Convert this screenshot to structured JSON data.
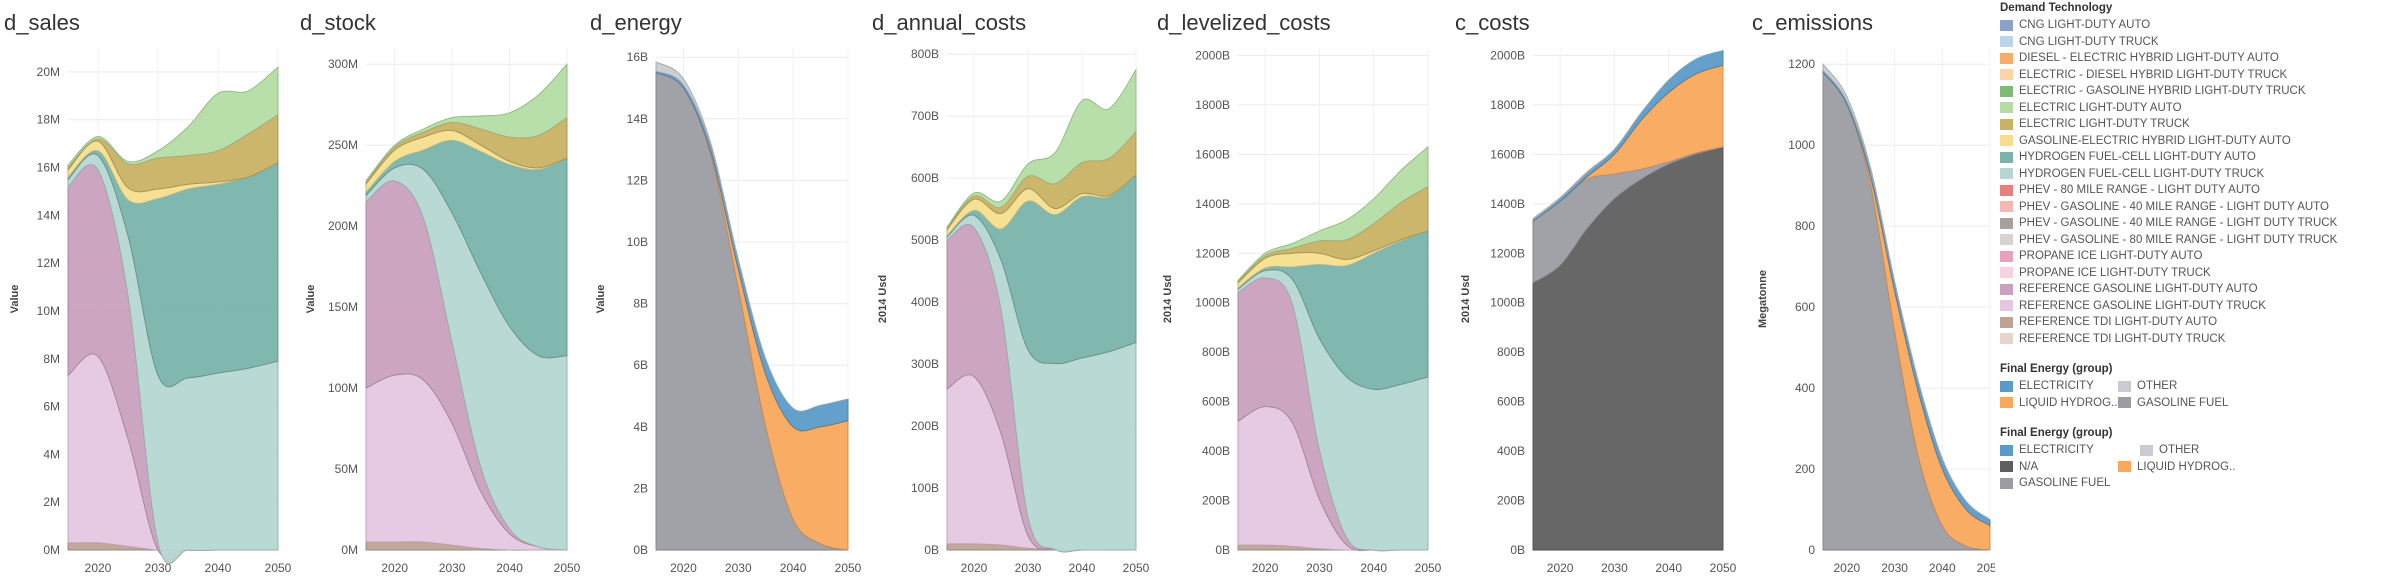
{
  "x_ticks": [
    "2020",
    "2030",
    "2040",
    "2050"
  ],
  "legend_main": {
    "title": "Demand Technology",
    "items": [
      {
        "label": "CNG LIGHT-DUTY AUTO",
        "color": "#8aa1c8"
      },
      {
        "label": "CNG LIGHT-DUTY TRUCK",
        "color": "#bcd3ec"
      },
      {
        "label": "DIESEL - ELECTRIC HYBRID LIGHT-DUTY AUTO",
        "color": "#f6ad6a"
      },
      {
        "label": "ELECTRIC - DIESEL HYBRID LIGHT-DUTY TRUCK",
        "color": "#fbd4a9"
      },
      {
        "label": "ELECTRIC - GASOLINE HYBRID LIGHT-DUTY TRUCK",
        "color": "#7fbb74"
      },
      {
        "label": "ELECTRIC LIGHT-DUTY AUTO",
        "color": "#b4dca4"
      },
      {
        "label": "ELECTRIC LIGHT-DUTY TRUCK",
        "color": "#c9b264"
      },
      {
        "label": "GASOLINE-ELECTRIC HYBRID LIGHT-DUTY AUTO",
        "color": "#f6de8e"
      },
      {
        "label": "HYDROGEN FUEL-CELL LIGHT-DUTY AUTO",
        "color": "#79b3ab"
      },
      {
        "label": "HYDROGEN FUEL-CELL LIGHT-DUTY TRUCK",
        "color": "#b5d7d3"
      },
      {
        "label": "PHEV - 80 MILE RANGE - LIGHT DUTY AUTO",
        "color": "#e77f7f"
      },
      {
        "label": "PHEV - GASOLINE - 40 MILE RANGE - LIGHT DUTY AUTO",
        "color": "#f2b8b4"
      },
      {
        "label": "PHEV - GASOLINE - 40 MILE RANGE - LIGHT DUTY TRUCK",
        "color": "#a6a19d"
      },
      {
        "label": "PHEV - GASOLINE -  80 MILE RANGE - LIGHT DUTY TRUCK",
        "color": "#d9d3cf"
      },
      {
        "label": "PROPANE ICE LIGHT-DUTY AUTO",
        "color": "#e8a1bb"
      },
      {
        "label": "PROPANE ICE LIGHT-DUTY TRUCK",
        "color": "#f7d3df"
      },
      {
        "label": "REFERENCE GASOLINE LIGHT-DUTY AUTO",
        "color": "#c9a0bd"
      },
      {
        "label": "REFERENCE GASOLINE LIGHT-DUTY TRUCK",
        "color": "#e5c6e0"
      },
      {
        "label": "REFERENCE TDI LIGHT-DUTY AUTO",
        "color": "#bea395"
      },
      {
        "label": "REFERENCE TDI LIGHT-DUTY TRUCK",
        "color": "#e6d5cb"
      }
    ]
  },
  "legend_energy": {
    "title": "Final Energy (group)",
    "items": [
      {
        "label": "ELECTRICITY",
        "color": "#5b9bc9"
      },
      {
        "label": "OTHER",
        "color": "#c8ccd2"
      },
      {
        "label": "LIQUID HYDROG..",
        "color": "#f9a85c"
      },
      {
        "label": "GASOLINE FUEL",
        "color": "#9b9da3"
      }
    ]
  },
  "legend_energy2": {
    "title": "Final Energy (group)",
    "items": [
      {
        "label": "ELECTRICITY",
        "color": "#5b9bc9"
      },
      {
        "label": "OTHER",
        "color": "#c8ccd2"
      },
      {
        "label": "N/A",
        "color": "#5f5f5f"
      },
      {
        "label": "LIQUID HYDROG..",
        "color": "#f9a85c"
      },
      {
        "label": "GASOLINE FUEL",
        "color": "#9b9da3"
      }
    ]
  },
  "chart_data": [
    {
      "type": "area",
      "title": "d_sales",
      "ylabel": "Value",
      "x": [
        2015,
        2020,
        2025,
        2030,
        2035,
        2040,
        2045,
        2050
      ],
      "ylim": [
        0,
        21000000
      ],
      "yticks": [
        0,
        2000000,
        4000000,
        6000000,
        8000000,
        10000000,
        12000000,
        14000000,
        16000000,
        18000000,
        20000000
      ],
      "ytick_labels": [
        "0M",
        "2M",
        "4M",
        "6M",
        "8M",
        "10M",
        "12M",
        "14M",
        "16M",
        "18M",
        "20M"
      ],
      "series": [
        {
          "color": "#bea395",
          "values": [
            0.3,
            0.3,
            0.15,
            0,
            0,
            0,
            0,
            0
          ]
        },
        {
          "color": "#e5c6e0",
          "values": [
            7.0,
            7.8,
            4.5,
            0,
            0,
            0,
            0,
            0
          ]
        },
        {
          "color": "#c9a0bd",
          "values": [
            7.9,
            7.8,
            6.0,
            0.3,
            0,
            0,
            0,
            0
          ]
        },
        {
          "color": "#b5d7d3",
          "values": [
            0.3,
            0.6,
            2.5,
            7.0,
            7.2,
            7.4,
            7.6,
            7.9
          ]
        },
        {
          "color": "#79b3ab",
          "values": [
            0.1,
            0.2,
            1.5,
            7.4,
            7.9,
            7.9,
            8.0,
            8.3
          ]
        },
        {
          "color": "#f6de8e",
          "values": [
            0.3,
            0.4,
            0.5,
            0.4,
            0.2,
            0.1,
            0,
            0
          ]
        },
        {
          "color": "#c9b264",
          "values": [
            0.1,
            0.1,
            1.0,
            1.3,
            1.2,
            1.3,
            1.8,
            2.0
          ]
        },
        {
          "color": "#b4dca4",
          "values": [
            0.1,
            0.1,
            0.1,
            0.3,
            1.2,
            2.4,
            1.8,
            2.0
          ]
        }
      ]
    },
    {
      "type": "area",
      "title": "d_stock",
      "ylabel": "Value",
      "x": [
        2015,
        2020,
        2025,
        2030,
        2035,
        2040,
        2045,
        2050
      ],
      "ylim": [
        0,
        310000000
      ],
      "yticks": [
        0,
        50000000,
        100000000,
        150000000,
        200000000,
        250000000,
        300000000
      ],
      "ytick_labels": [
        "0M",
        "50M",
        "100M",
        "150M",
        "200M",
        "250M",
        "300M"
      ],
      "series": [
        {
          "color": "#bea395",
          "values": [
            5,
            5,
            5,
            3,
            1,
            0,
            0,
            0
          ]
        },
        {
          "color": "#e5c6e0",
          "values": [
            95,
            103,
            100,
            75,
            35,
            10,
            2,
            0
          ]
        },
        {
          "color": "#c9a0bd",
          "values": [
            115,
            120,
            100,
            50,
            15,
            3,
            0,
            0
          ]
        },
        {
          "color": "#b5d7d3",
          "values": [
            4,
            8,
            30,
            80,
            120,
            125,
            118,
            120
          ]
        },
        {
          "color": "#79b3ab",
          "values": [
            2,
            4,
            12,
            45,
            75,
            100,
            115,
            122
          ]
        },
        {
          "color": "#f6de8e",
          "values": [
            5,
            7,
            8,
            6,
            4,
            2,
            1,
            0
          ]
        },
        {
          "color": "#c9b264",
          "values": [
            1,
            2,
            3,
            5,
            10,
            15,
            20,
            25
          ]
        },
        {
          "color": "#b4dca4",
          "values": [
            1,
            1,
            2,
            3,
            8,
            15,
            25,
            33
          ]
        }
      ]
    },
    {
      "type": "area",
      "title": "d_energy",
      "ylabel": "Value",
      "x": [
        2015,
        2020,
        2025,
        2030,
        2035,
        2040,
        2045,
        2050
      ],
      "ylim": [
        0,
        16300000000
      ],
      "yticks": [
        0,
        2000000000,
        4000000000,
        6000000000,
        8000000000,
        10000000000,
        12000000000,
        14000000000,
        16000000000
      ],
      "ytick_labels": [
        "0B",
        "2B",
        "4B",
        "6B",
        "8B",
        "10B",
        "12B",
        "14B",
        "16B"
      ],
      "series": [
        {
          "color": "#9b9da3",
          "values": [
            15.5,
            15.0,
            12.8,
            8.5,
            4.0,
            1.0,
            0.2,
            0
          ]
        },
        {
          "color": "#f9a85c",
          "values": [
            0,
            0,
            0.1,
            0.6,
            1.7,
            3.0,
            3.8,
            4.2
          ]
        },
        {
          "color": "#5b9bc9",
          "values": [
            0.05,
            0.1,
            0.2,
            0.3,
            0.5,
            0.6,
            0.7,
            0.7
          ]
        },
        {
          "color": "#c8ccd2",
          "values": [
            0.3,
            0.2,
            0.1,
            0.05,
            0,
            0,
            0,
            0
          ]
        }
      ]
    },
    {
      "type": "area",
      "title": "d_annual_costs",
      "ylabel": "2014 Usd",
      "x": [
        2015,
        2020,
        2025,
        2030,
        2035,
        2040,
        2045,
        2050
      ],
      "ylim": [
        0,
        810000000000
      ],
      "yticks": [
        0,
        100000000000,
        200000000000,
        300000000000,
        400000000000,
        500000000000,
        600000000000,
        700000000000,
        800000000000
      ],
      "ytick_labels": [
        "0B",
        "100B",
        "200B",
        "300B",
        "400B",
        "500B",
        "600B",
        "700B",
        "800B"
      ],
      "series": [
        {
          "color": "#bea395",
          "values": [
            10,
            10,
            8,
            3,
            1,
            0,
            0,
            0
          ]
        },
        {
          "color": "#e5c6e0",
          "values": [
            250,
            270,
            180,
            20,
            0,
            0,
            0,
            0
          ]
        },
        {
          "color": "#c9a0bd",
          "values": [
            240,
            240,
            200,
            30,
            0,
            0,
            0,
            0
          ]
        },
        {
          "color": "#b5d7d3",
          "values": [
            5,
            20,
            80,
            270,
            300,
            310,
            320,
            335
          ]
        },
        {
          "color": "#79b3ab",
          "values": [
            2,
            8,
            50,
            240,
            240,
            260,
            250,
            270
          ]
        },
        {
          "color": "#f6de8e",
          "values": [
            10,
            18,
            25,
            20,
            10,
            5,
            2,
            0
          ]
        },
        {
          "color": "#c9b264",
          "values": [
            2,
            5,
            10,
            20,
            40,
            50,
            60,
            70
          ]
        },
        {
          "color": "#b4dca4",
          "values": [
            2,
            5,
            10,
            20,
            50,
            100,
            80,
            100
          ]
        }
      ]
    },
    {
      "type": "area",
      "title": "d_levelized_costs",
      "ylabel": "2014 Usd",
      "x": [
        2015,
        2020,
        2025,
        2030,
        2035,
        2040,
        2045,
        2050
      ],
      "ylim": [
        0,
        2030000000000
      ],
      "yticks": [
        0,
        200000000000,
        400000000000,
        600000000000,
        800000000000,
        1000000000000,
        1200000000000,
        1400000000000,
        1600000000000,
        1800000000000,
        2000000000000
      ],
      "ytick_labels": [
        "0B",
        "200B",
        "400B",
        "600B",
        "800B",
        "1000B",
        "1200B",
        "1400B",
        "1600B",
        "1800B",
        "2000B"
      ],
      "series": [
        {
          "color": "#bea395",
          "values": [
            20,
            20,
            15,
            5,
            0,
            0,
            0,
            0
          ]
        },
        {
          "color": "#e5c6e0",
          "values": [
            500,
            560,
            500,
            200,
            20,
            0,
            0,
            0
          ]
        },
        {
          "color": "#c9a0bd",
          "values": [
            520,
            520,
            480,
            200,
            30,
            0,
            0,
            0
          ]
        },
        {
          "color": "#b5d7d3",
          "values": [
            15,
            30,
            100,
            450,
            650,
            650,
            670,
            700
          ]
        },
        {
          "color": "#79b3ab",
          "values": [
            5,
            10,
            50,
            300,
            450,
            550,
            580,
            590
          ]
        },
        {
          "color": "#f6de8e",
          "values": [
            20,
            40,
            55,
            45,
            25,
            10,
            5,
            0
          ]
        },
        {
          "color": "#c9b264",
          "values": [
            5,
            10,
            20,
            50,
            80,
            110,
            150,
            180
          ]
        },
        {
          "color": "#b4dca4",
          "values": [
            5,
            10,
            20,
            40,
            80,
            100,
            130,
            160
          ]
        }
      ]
    },
    {
      "type": "area",
      "title": "c_costs",
      "ylabel": "2014 Usd",
      "x": [
        2015,
        2020,
        2025,
        2030,
        2035,
        2040,
        2045,
        2050
      ],
      "ylim": [
        0,
        2030000000000
      ],
      "yticks": [
        0,
        200000000000,
        400000000000,
        600000000000,
        800000000000,
        1000000000000,
        1200000000000,
        1400000000000,
        1600000000000,
        1800000000000,
        2000000000000
      ],
      "ytick_labels": [
        "0B",
        "200B",
        "400B",
        "600B",
        "800B",
        "1000B",
        "1200B",
        "1400B",
        "1600B",
        "1800B",
        "2000B"
      ],
      "series": [
        {
          "color": "#5f5f5f",
          "values": [
            1080,
            1150,
            1300,
            1420,
            1500,
            1560,
            1600,
            1630
          ]
        },
        {
          "color": "#9b9da3",
          "values": [
            250,
            260,
            200,
            100,
            40,
            10,
            5,
            0
          ]
        },
        {
          "color": "#f9a85c",
          "values": [
            0,
            0,
            10,
            80,
            200,
            280,
            320,
            330
          ]
        },
        {
          "color": "#5b9bc9",
          "values": [
            5,
            10,
            15,
            20,
            30,
            50,
            60,
            60
          ]
        },
        {
          "color": "#c8ccd2",
          "values": [
            5,
            5,
            5,
            0,
            0,
            0,
            0,
            0
          ]
        }
      ]
    },
    {
      "type": "area",
      "title": "c_emissions",
      "ylabel": "Megatonne",
      "x": [
        2015,
        2020,
        2025,
        2030,
        2035,
        2040,
        2045,
        2050
      ],
      "ylim": [
        0,
        1240
      ],
      "yticks": [
        0,
        200,
        400,
        600,
        800,
        1000,
        1200
      ],
      "ytick_labels": [
        "0",
        "200",
        "400",
        "600",
        "800",
        "1000",
        "1200"
      ],
      "series": [
        {
          "color": "#9b9da3",
          "values": [
            1180,
            1100,
            900,
            540,
            230,
            60,
            10,
            0
          ]
        },
        {
          "color": "#f9a85c",
          "values": [
            0,
            0,
            20,
            100,
            160,
            140,
            90,
            60
          ]
        },
        {
          "color": "#5b9bc9",
          "values": [
            5,
            8,
            15,
            20,
            25,
            25,
            20,
            15
          ]
        },
        {
          "color": "#c8ccd2",
          "values": [
            15,
            12,
            8,
            5,
            2,
            0,
            0,
            0
          ]
        }
      ]
    }
  ]
}
